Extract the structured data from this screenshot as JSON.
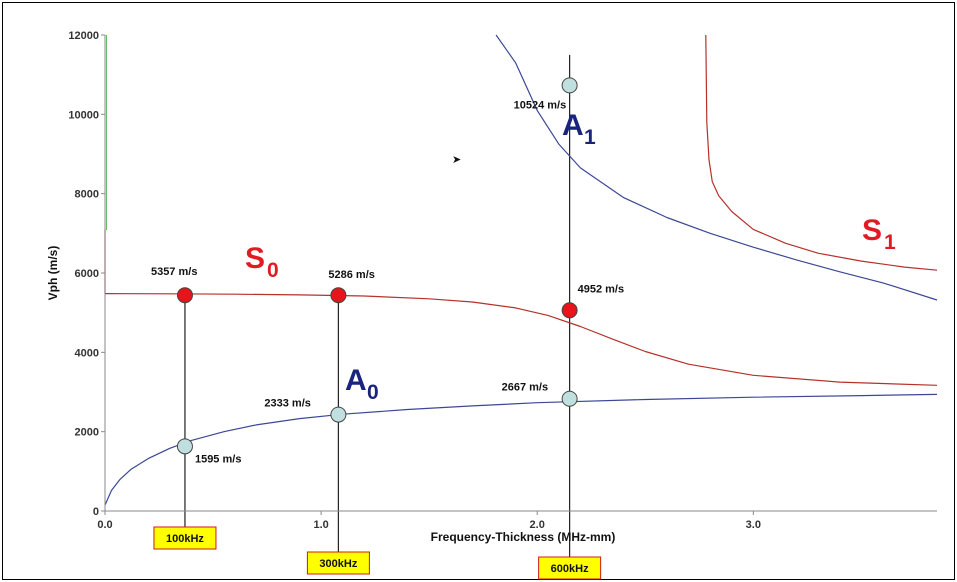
{
  "chart_data": {
    "type": "line",
    "title": "",
    "xlabel": "Frequency-Thickness (MHz-mm)",
    "ylabel": "Vph (m/s)",
    "xlim": [
      0,
      3.85
    ],
    "ylim": [
      0,
      12000
    ],
    "x_ticks": [
      "0.0",
      "1.0",
      "2.0",
      "3.0"
    ],
    "x_tick_values": [
      0,
      1,
      2,
      3
    ],
    "y_ticks": [
      "0",
      "2000",
      "4000",
      "6000",
      "8000",
      "10000",
      "12000"
    ],
    "y_tick_values": [
      0,
      2000,
      4000,
      6000,
      8000,
      10000,
      12000
    ],
    "grid": false,
    "series": [
      {
        "name": "S0",
        "sub": "0",
        "color": "#b5312c",
        "x": [
          0.0,
          0.3,
          0.6,
          0.9,
          1.2,
          1.5,
          1.7,
          1.9,
          2.05,
          2.2,
          2.35,
          2.5,
          2.7,
          3.0,
          3.4,
          3.85
        ],
        "y": [
          5480,
          5475,
          5465,
          5448,
          5420,
          5350,
          5270,
          5120,
          4930,
          4650,
          4330,
          4020,
          3700,
          3420,
          3250,
          3170
        ]
      },
      {
        "name": "A0",
        "sub": "0",
        "color": "#3c4896",
        "x": [
          0.0,
          0.03,
          0.07,
          0.12,
          0.2,
          0.3,
          0.4,
          0.55,
          0.7,
          0.9,
          1.1,
          1.4,
          1.7,
          2.0,
          2.5,
          3.0,
          3.5,
          3.85
        ],
        "y": [
          150,
          520,
          800,
          1050,
          1320,
          1580,
          1780,
          2000,
          2170,
          2330,
          2440,
          2560,
          2650,
          2730,
          2810,
          2870,
          2910,
          2940
        ]
      },
      {
        "name": "A1",
        "sub": "1",
        "color": "#3c4896",
        "x": [
          1.81,
          1.9,
          2.0,
          2.1,
          2.2,
          2.4,
          2.6,
          2.8,
          3.0,
          3.2,
          3.4,
          3.6,
          3.85
        ],
        "y": [
          12000,
          11300,
          10100,
          9250,
          8650,
          7900,
          7400,
          7000,
          6650,
          6330,
          6030,
          5750,
          5320
        ]
      },
      {
        "name": "S1",
        "sub": "1",
        "color": "#b5312c",
        "x": [
          2.78,
          2.785,
          2.795,
          2.81,
          2.84,
          2.9,
          3.0,
          3.15,
          3.3,
          3.5,
          3.7,
          3.85
        ],
        "y": [
          12000,
          9800,
          8850,
          8300,
          7950,
          7550,
          7100,
          6750,
          6500,
          6300,
          6150,
          6070
        ]
      }
    ],
    "markers": [
      {
        "series": "S0",
        "x": 0.37,
        "y": 5440,
        "label": "5357 m/s",
        "fill": "#e8141c"
      },
      {
        "series": "S0",
        "x": 1.08,
        "y": 5440,
        "label": "5286 m/s",
        "fill": "#e8141c"
      },
      {
        "series": "S0",
        "x": 2.15,
        "y": 5060,
        "label": "4952 m/s",
        "fill": "#e8141c"
      },
      {
        "series": "A0",
        "x": 0.37,
        "y": 1630,
        "label": "1595 m/s",
        "fill": "#bfe0df"
      },
      {
        "series": "A0",
        "x": 1.08,
        "y": 2430,
        "label": "2333 m/s",
        "fill": "#bfe0df"
      },
      {
        "series": "A0",
        "x": 2.15,
        "y": 2830,
        "label": "2667 m/s",
        "fill": "#bfe0df"
      },
      {
        "series": "A1",
        "x": 2.15,
        "y": 10730,
        "label": "10524 m/s",
        "fill": "#bfe0df"
      }
    ],
    "frequency_lines": [
      {
        "x": 0.37,
        "label": "100kHz"
      },
      {
        "x": 1.08,
        "label": "300kHz"
      },
      {
        "x": 2.15,
        "label": "600kHz"
      }
    ],
    "annotations": {
      "a1_arrow": "➤"
    }
  },
  "colors": {
    "symmetric": "#e11b22",
    "antisymmetric": "#1a237e",
    "freq_box_fill": "#ffff00",
    "freq_box_border": "#d01818"
  }
}
